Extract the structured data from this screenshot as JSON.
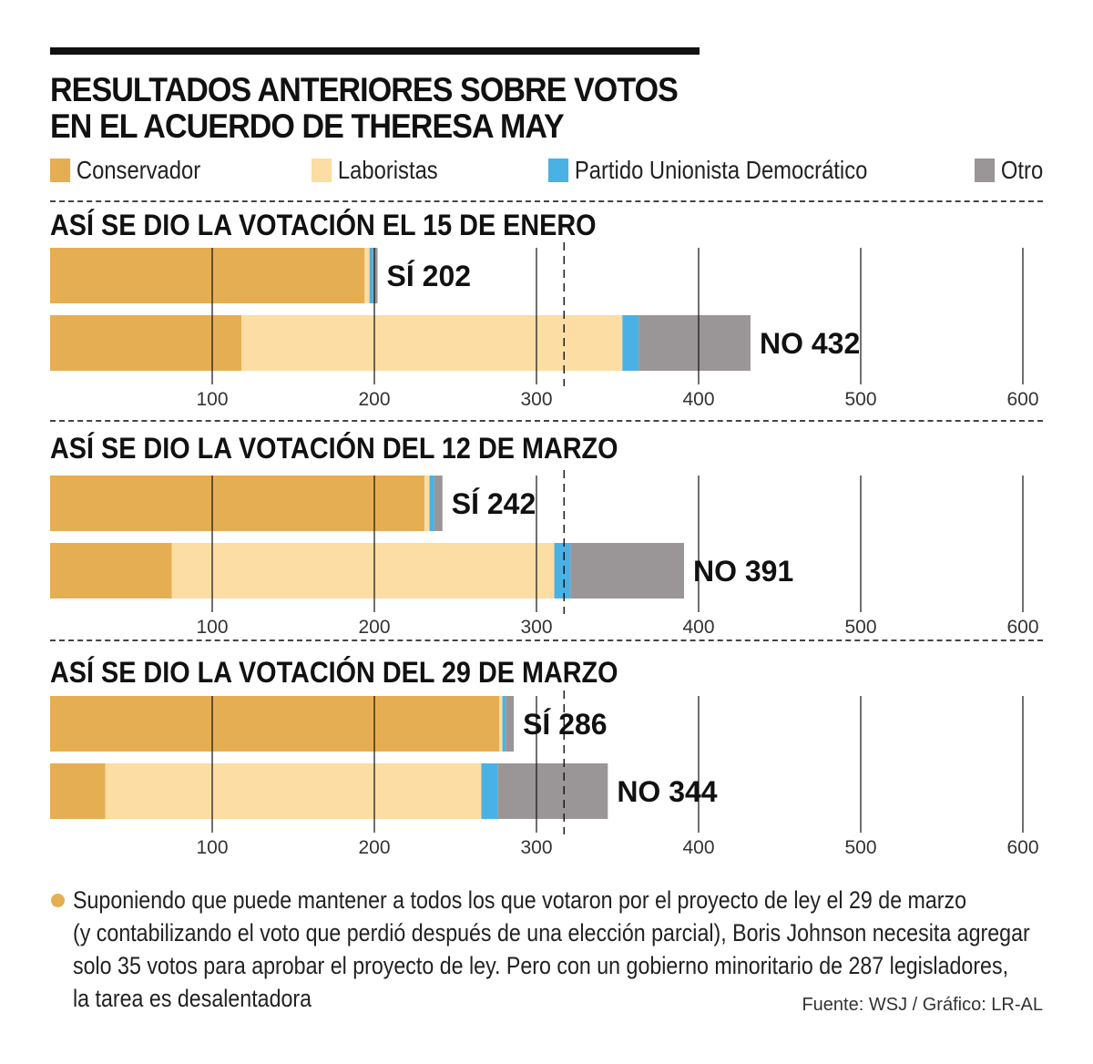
{
  "title_lines": [
    "RESULTADOS ANTERIORES SOBRE VOTOS",
    "EN EL ACUERDO DE THERESA MAY"
  ],
  "legend": [
    {
      "label": "Conservador",
      "color": "#e6ae52"
    },
    {
      "label": "Laboristas",
      "color": "#fcdda3"
    },
    {
      "label": "Partido Unionista Democrático",
      "color": "#4ab1e4"
    },
    {
      "label": "Otro",
      "color": "#9a9597"
    }
  ],
  "chart_data": [
    {
      "type": "bar",
      "orientation": "horizontal",
      "stacked": true,
      "title": "ASÍ SE DIO LA VOTACIÓN EL 15 DE ENERO",
      "categories": [
        "SÍ 202",
        "NO 432"
      ],
      "series": [
        {
          "name": "Conservador",
          "values": [
            194,
            118
          ]
        },
        {
          "name": "Laboristas",
          "values": [
            3,
            235
          ]
        },
        {
          "name": "Partido Unionista Democrático",
          "values": [
            2,
            10
          ]
        },
        {
          "name": "Otro",
          "values": [
            3,
            69
          ]
        }
      ],
      "xticks": [
        100,
        200,
        300,
        400,
        500,
        600
      ],
      "xlim": [
        0,
        600
      ],
      "reference_line": 317,
      "grid": true
    },
    {
      "type": "bar",
      "orientation": "horizontal",
      "stacked": true,
      "title": "ASÍ SE DIO LA VOTACIÓN DEL 12 DE MARZO",
      "categories": [
        "SÍ 242",
        "NO 391"
      ],
      "series": [
        {
          "name": "Conservador",
          "values": [
            231,
            75
          ]
        },
        {
          "name": "Laboristas",
          "values": [
            3,
            236
          ]
        },
        {
          "name": "Partido Unionista Democrático",
          "values": [
            3,
            10
          ]
        },
        {
          "name": "Otro",
          "values": [
            5,
            70
          ]
        }
      ],
      "xticks": [
        100,
        200,
        300,
        400,
        500,
        600
      ],
      "xlim": [
        0,
        600
      ],
      "reference_line": 317,
      "grid": true
    },
    {
      "type": "bar",
      "orientation": "horizontal",
      "stacked": true,
      "title": "ASÍ SE DIO LA VOTACIÓN DEL 29 DE MARZO",
      "categories": [
        "SÍ 286",
        "NO 344"
      ],
      "series": [
        {
          "name": "Conservador",
          "values": [
            277,
            34
          ]
        },
        {
          "name": "Laboristas",
          "values": [
            2,
            232
          ]
        },
        {
          "name": "Partido Unionista Democrático",
          "values": [
            2,
            10
          ]
        },
        {
          "name": "Otro",
          "values": [
            5,
            68
          ]
        }
      ],
      "xticks": [
        100,
        200,
        300,
        400,
        500,
        600
      ],
      "xlim": [
        0,
        600
      ],
      "reference_line": 317,
      "grid": true
    }
  ],
  "note_lines": [
    "Suponiendo que puede mantener a todos los que votaron por el proyecto de ley el 29 de marzo",
    "(y contabilizando el voto que perdió después de una elección parcial), Boris Johnson necesita agregar",
    "solo 35 votos para aprobar el proyecto de ley. Pero con un gobierno minoritario de 287 legisladores,",
    "la tarea es desalentadora"
  ],
  "source": "Fuente: WSJ / Gráfico: LR-AL"
}
